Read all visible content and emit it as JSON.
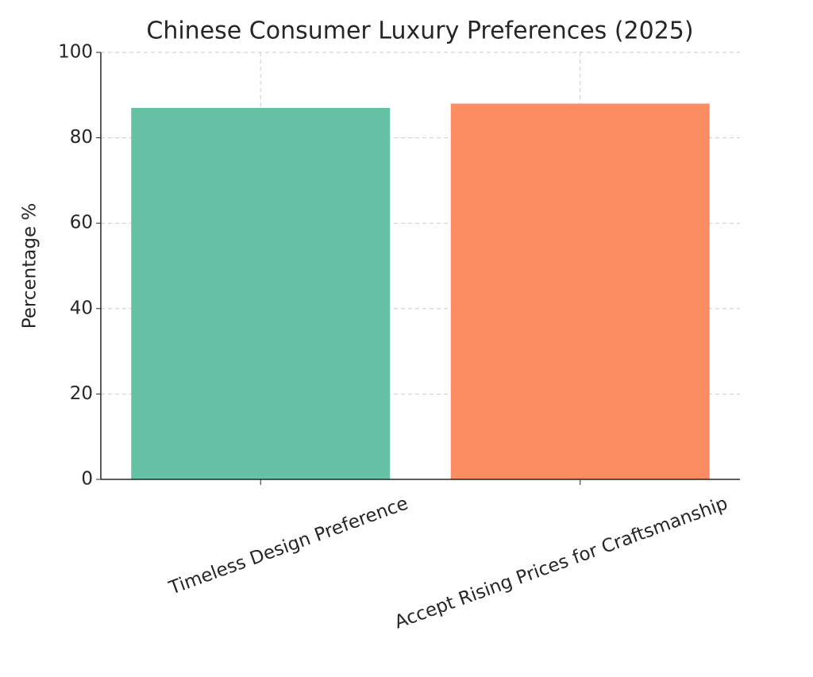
{
  "chart_data": {
    "type": "bar",
    "title": "Chinese Consumer Luxury Preferences (2025)",
    "y_label": "Percentage %",
    "categories": [
      "Timeless Design Preference",
      "Accept Rising Prices for Craftsmanship"
    ],
    "values": [
      87,
      88
    ],
    "colors": [
      "#66c2a5",
      "#fc8d62"
    ],
    "ylim": [
      0,
      100
    ],
    "yticks": [
      0,
      20,
      40,
      60,
      80,
      100
    ],
    "grid": true
  }
}
